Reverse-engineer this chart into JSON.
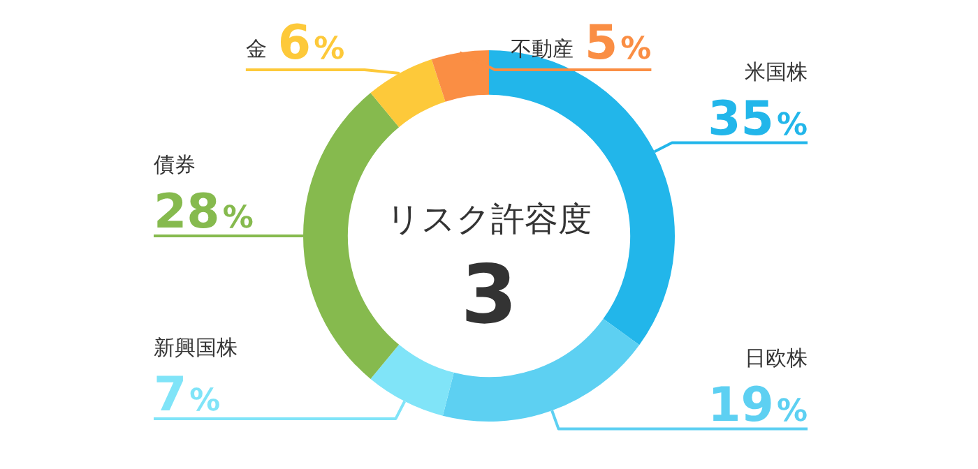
{
  "chart_data": {
    "type": "donut",
    "categories": [
      "米国株",
      "日欧株",
      "新興国株",
      "債券",
      "金",
      "不動産"
    ],
    "values": [
      35,
      19,
      7,
      28,
      6,
      5
    ],
    "colors": [
      "#22b6ea",
      "#5dd0f2",
      "#80e4f8",
      "#86ba4e",
      "#fdc93a",
      "#fa8e44"
    ],
    "value_labels": [
      "35%",
      "19%",
      "7%",
      "28%",
      "6%",
      "5%"
    ],
    "annotations": [
      "リスク許容度",
      "3"
    ],
    "legend": false
  }
}
